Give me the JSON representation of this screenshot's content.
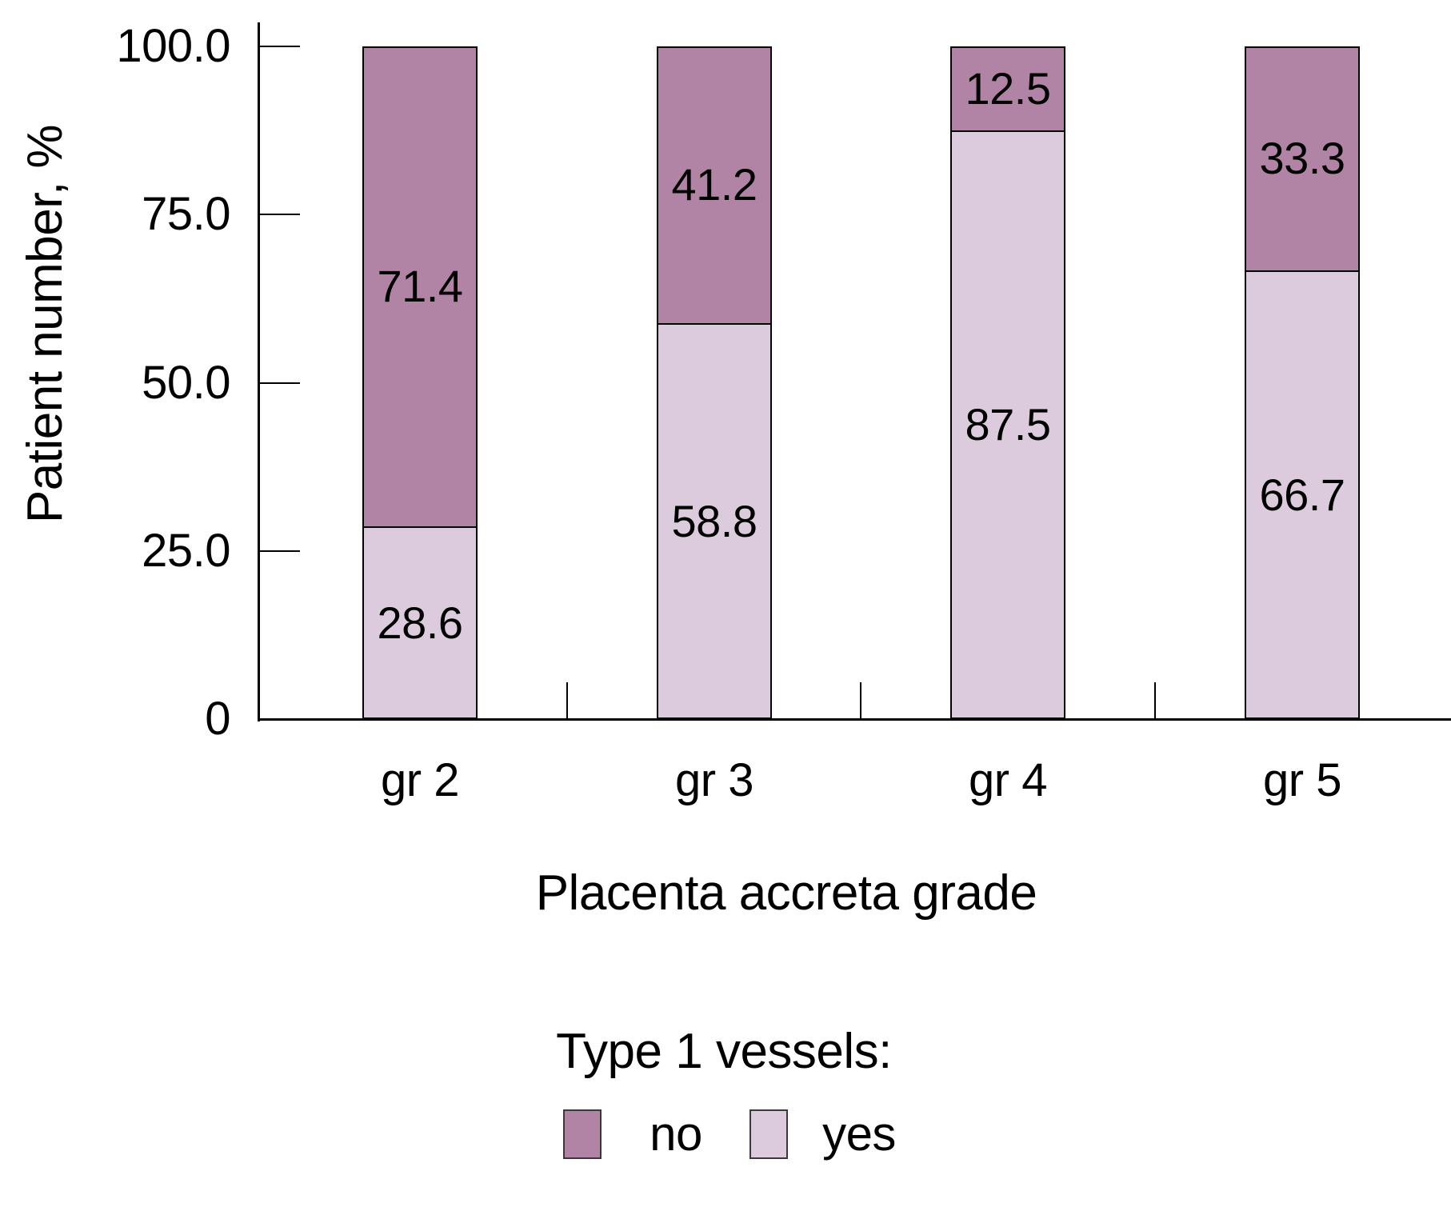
{
  "figure": {
    "y_axis": {
      "title": "Patient number, %",
      "tick_labels": [
        "100.0",
        "75.0",
        "50.0",
        "25.0",
        "0"
      ],
      "tick_values": [
        100,
        75,
        50,
        25,
        0
      ]
    },
    "x_axis": {
      "title": "Placenta accreta grade",
      "categories": [
        "gr 2",
        "gr 3",
        "gr 4",
        "gr 5"
      ]
    },
    "legend": {
      "title": "Type 1 vessels:",
      "items": [
        {
          "label": "no",
          "color": "#b184a6"
        },
        {
          "label": "yes",
          "color": "#dccbdc"
        }
      ]
    }
  },
  "chart_data": {
    "type": "bar",
    "stacked": true,
    "title": "",
    "xlabel": "Placenta accreta grade",
    "ylabel": "Patient number, %",
    "ylim": [
      0,
      100
    ],
    "grid": false,
    "legend_position": "bottom",
    "categories": [
      "gr 2",
      "gr 3",
      "gr 4",
      "gr 5"
    ],
    "series": [
      {
        "name": "no",
        "color": "#b184a6",
        "values": [
          71.4,
          41.2,
          12.5,
          33.3
        ]
      },
      {
        "name": "yes",
        "color": "#dccbdc",
        "values": [
          28.6,
          58.8,
          87.5,
          66.7
        ]
      }
    ],
    "stack_bottom_to_top": [
      "yes",
      "no"
    ],
    "value_labels_shown": true
  }
}
